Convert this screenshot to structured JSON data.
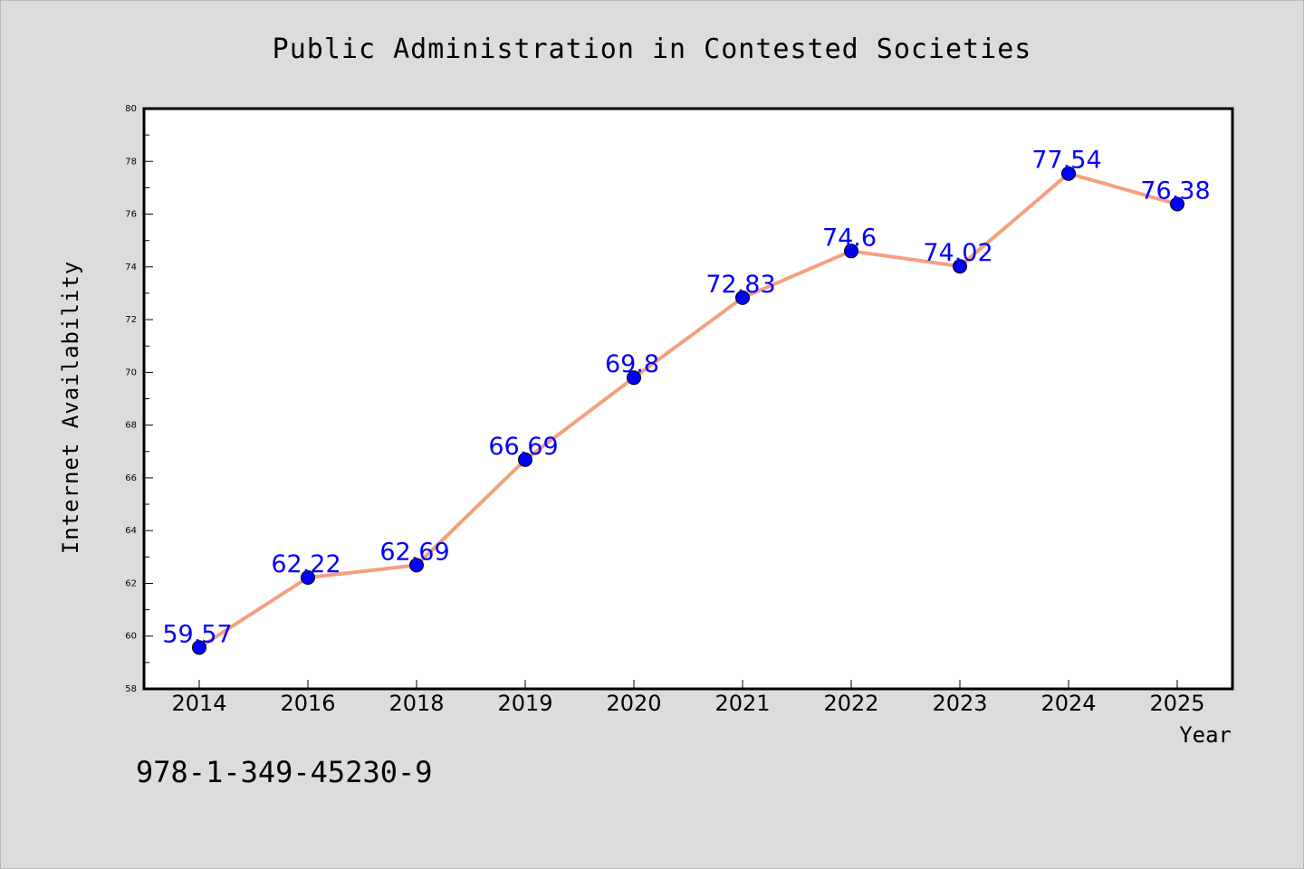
{
  "chart_data": {
    "type": "line",
    "title": "Public Administration in Contested Societies",
    "xlabel": "Year",
    "ylabel": "Internet Availability",
    "categories": [
      "2014",
      "2016",
      "2018",
      "2019",
      "2020",
      "2021",
      "2022",
      "2023",
      "2024",
      "2025"
    ],
    "series": [
      {
        "values": [
          59.57,
          62.22,
          62.69,
          66.69,
          69.8,
          72.83,
          74.6,
          74.02,
          77.54,
          76.38
        ],
        "labels": [
          "59.57",
          "62.22",
          "62.69",
          "66.69",
          "69.8",
          "72.83",
          "74.6",
          "74.02",
          "77.54",
          "76.38"
        ]
      }
    ],
    "ylim": [
      58,
      80
    ],
    "yticks": [
      "58",
      "60",
      "62",
      "64",
      "66",
      "68",
      "70",
      "72",
      "74",
      "76",
      "78",
      "80"
    ],
    "grid": false,
    "colors": {
      "line": "#f4a07f",
      "marker": "#0000ff",
      "label": "#0000ff",
      "background": "#dcdcdc",
      "plot_bg": "#ffffff"
    }
  },
  "annotation": "978-1-349-45230-9"
}
